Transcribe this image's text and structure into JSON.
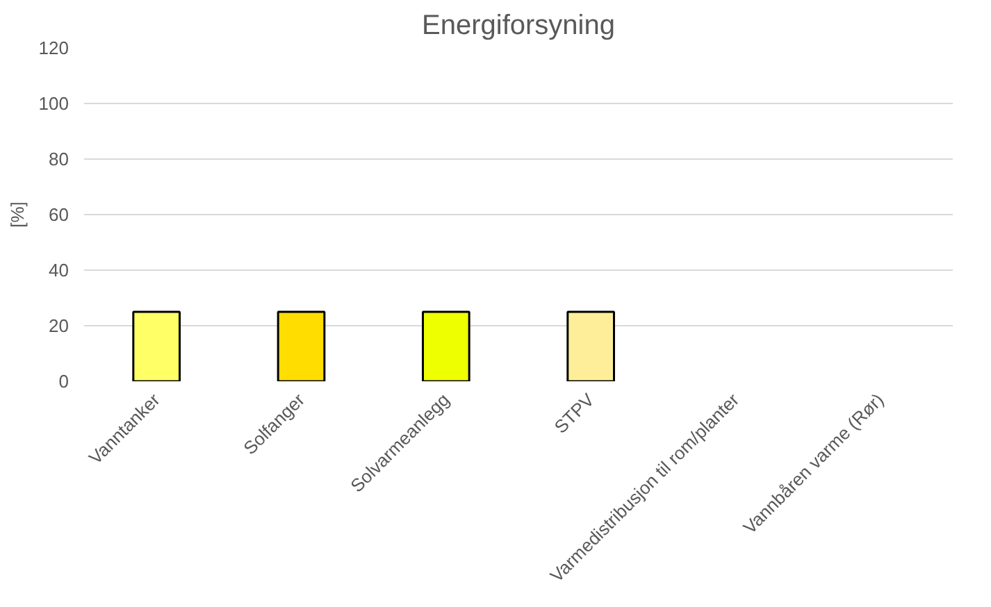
{
  "chart_data": {
    "type": "bar",
    "title": "Energiforsyning",
    "ylabel": "[%]",
    "categories": [
      "Vanntanker",
      "Solfanger",
      "Solvarmeanlegg",
      "STPV",
      "Varmedistribusjon til rom/planter",
      "Vannbåren varme (Rør)"
    ],
    "values": [
      25,
      25,
      25,
      25,
      null,
      null
    ],
    "colors": [
      "#ffff66",
      "#ffdd00",
      "#eeff00",
      "#ffee99",
      null,
      null
    ],
    "ylim": [
      0,
      120
    ],
    "yticks": [
      0,
      20,
      40,
      60,
      80,
      100,
      120
    ],
    "grid": "y"
  }
}
